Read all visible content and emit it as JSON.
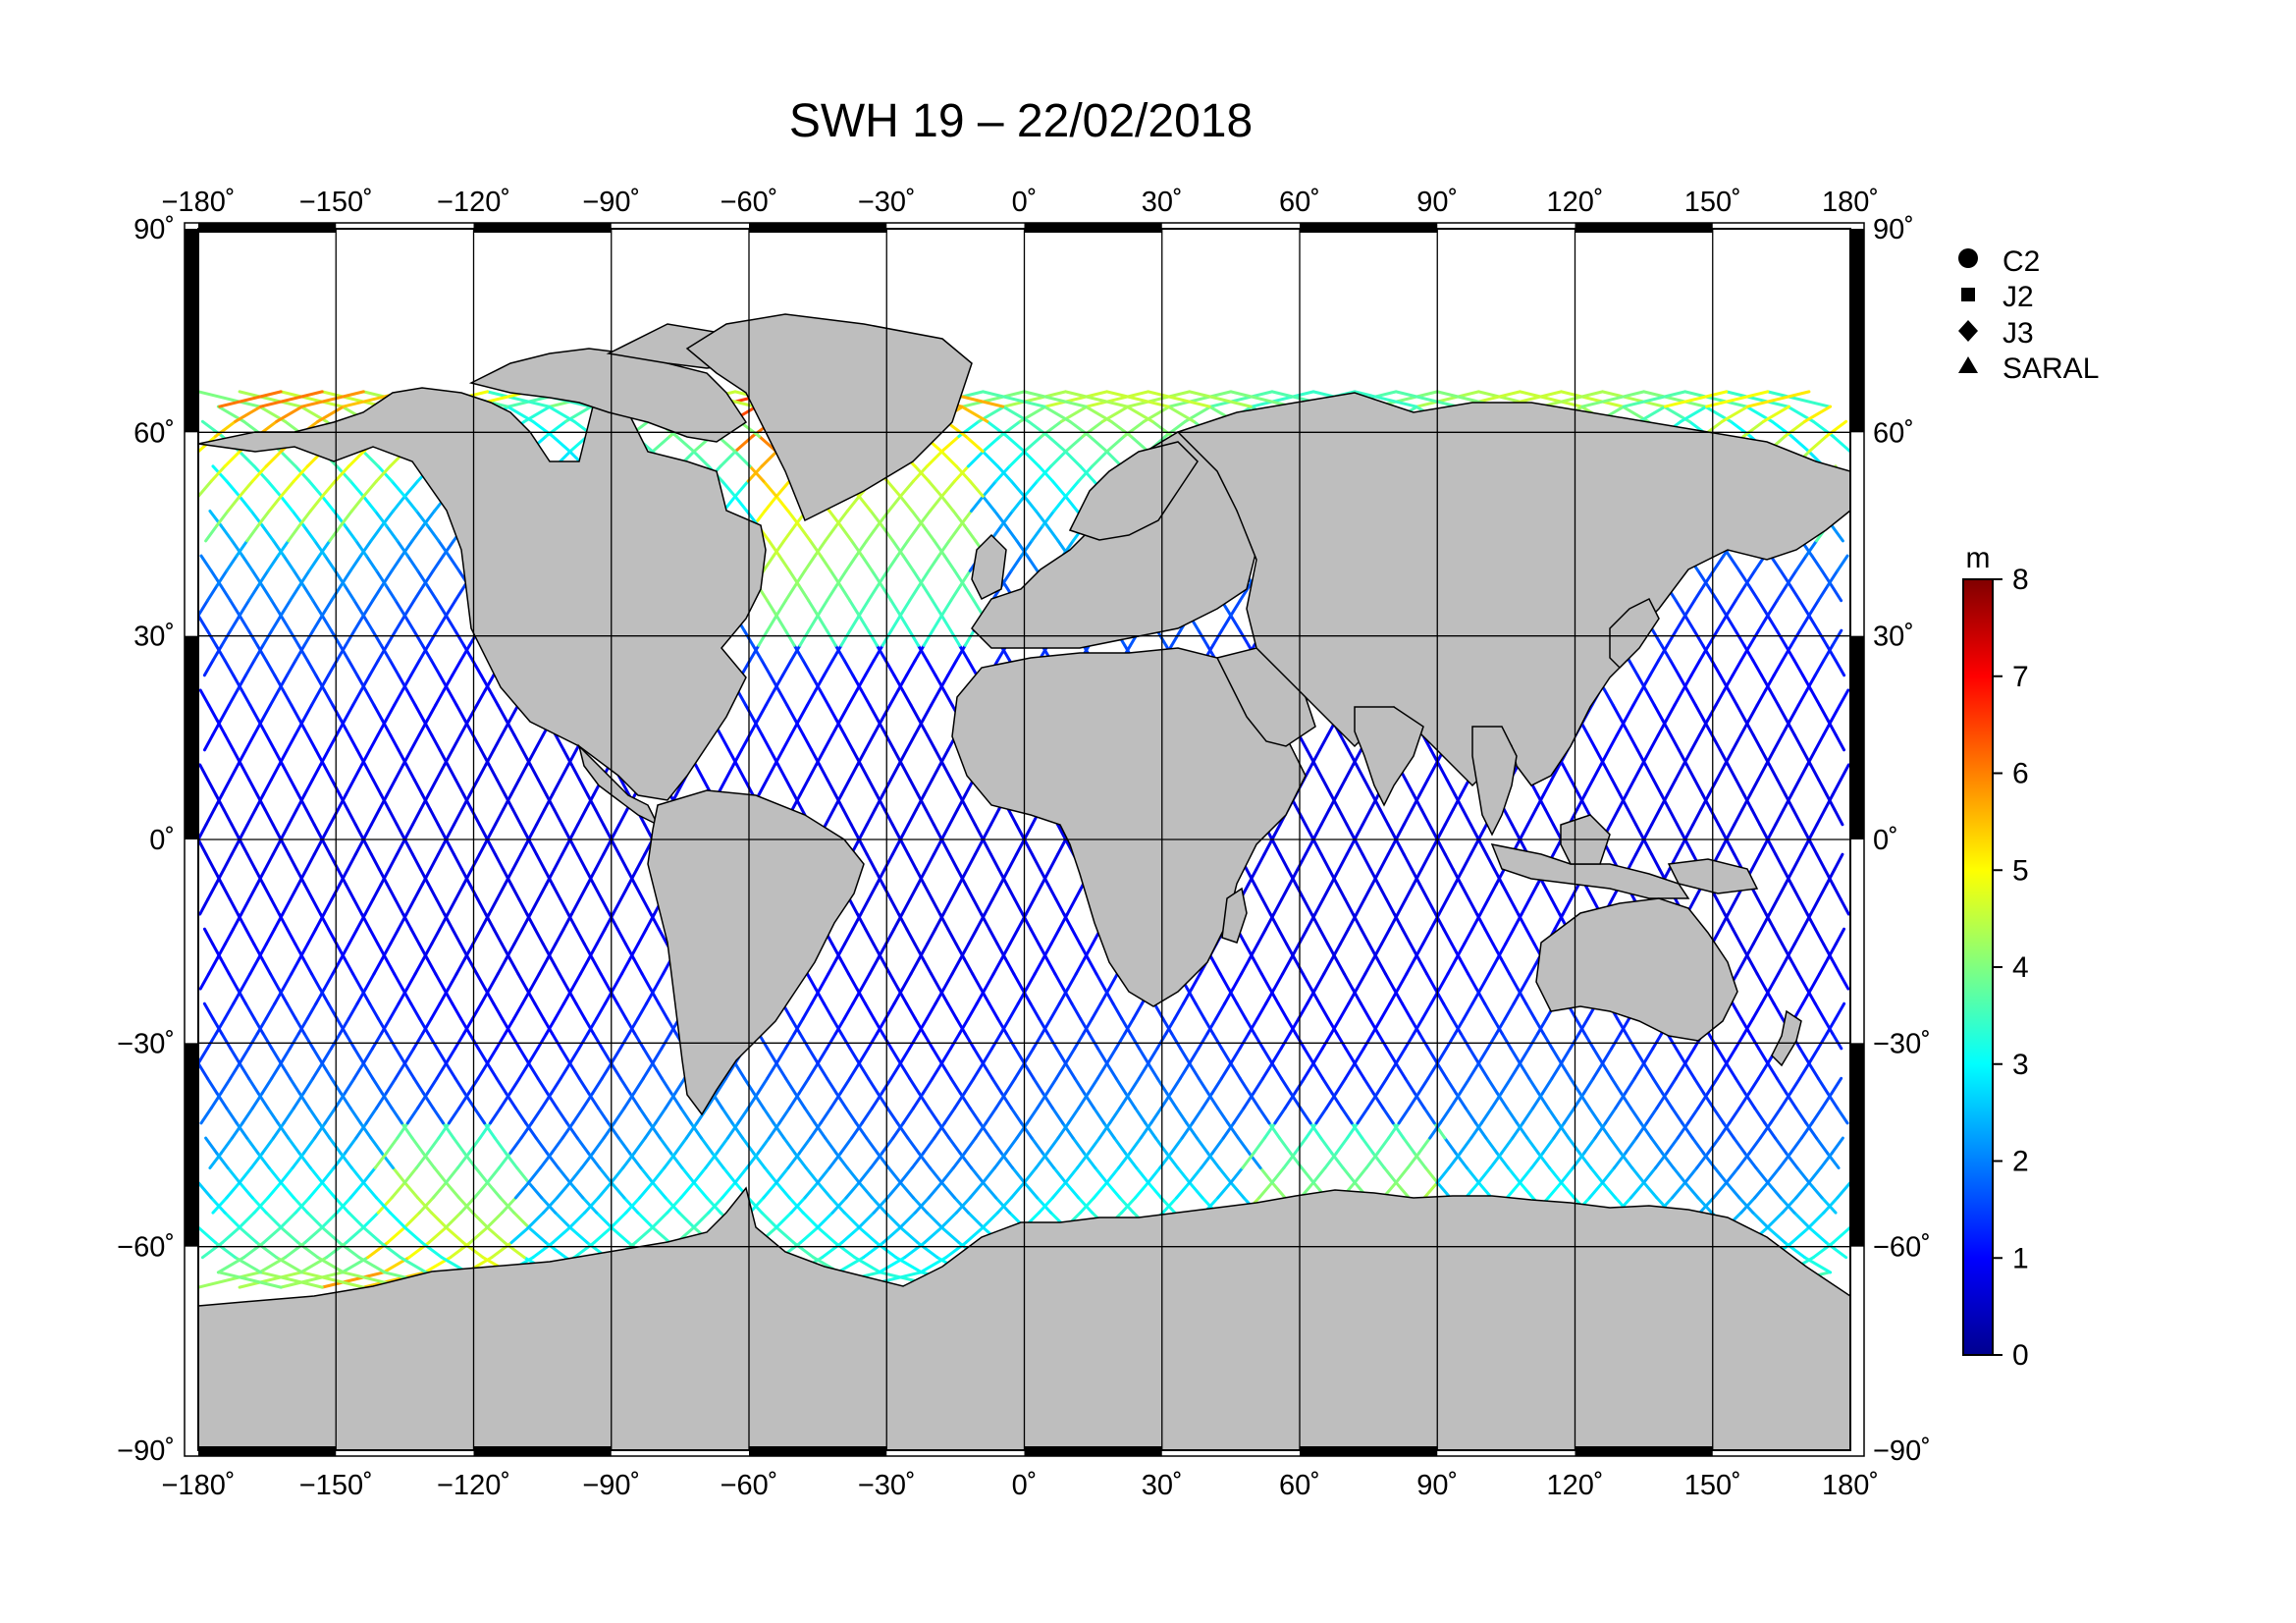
{
  "title": "SWH 19 – 22/02/2018",
  "x_ticks": [
    "−180˚",
    "−150˚",
    "−120˚",
    "−90˚",
    "−60˚",
    "−30˚",
    "0˚",
    "30˚",
    "60˚",
    "90˚",
    "120˚",
    "150˚",
    "180˚"
  ],
  "y_ticks": [
    "90˚",
    "60˚",
    "30˚",
    "0˚",
    "−30˚",
    "−60˚",
    "−90˚"
  ],
  "legend": {
    "items": [
      {
        "label": "C2",
        "marker": "circle"
      },
      {
        "label": "J2",
        "marker": "square"
      },
      {
        "label": "J3",
        "marker": "diamond"
      },
      {
        "label": "SARAL",
        "marker": "triangle"
      }
    ]
  },
  "colorbar": {
    "unit": "m",
    "ticks": [
      "0",
      "1",
      "2",
      "3",
      "4",
      "5",
      "6",
      "7",
      "8"
    ],
    "min": 0,
    "max": 8,
    "colors": [
      "#00008f",
      "#0000ff",
      "#0080ff",
      "#00ffff",
      "#80ff80",
      "#ffff00",
      "#ff8000",
      "#ff0000",
      "#800000"
    ]
  },
  "colors": {
    "land": "#bebebe",
    "coast": "#000000",
    "grid": "#000000",
    "frame_black": "#000000"
  }
}
